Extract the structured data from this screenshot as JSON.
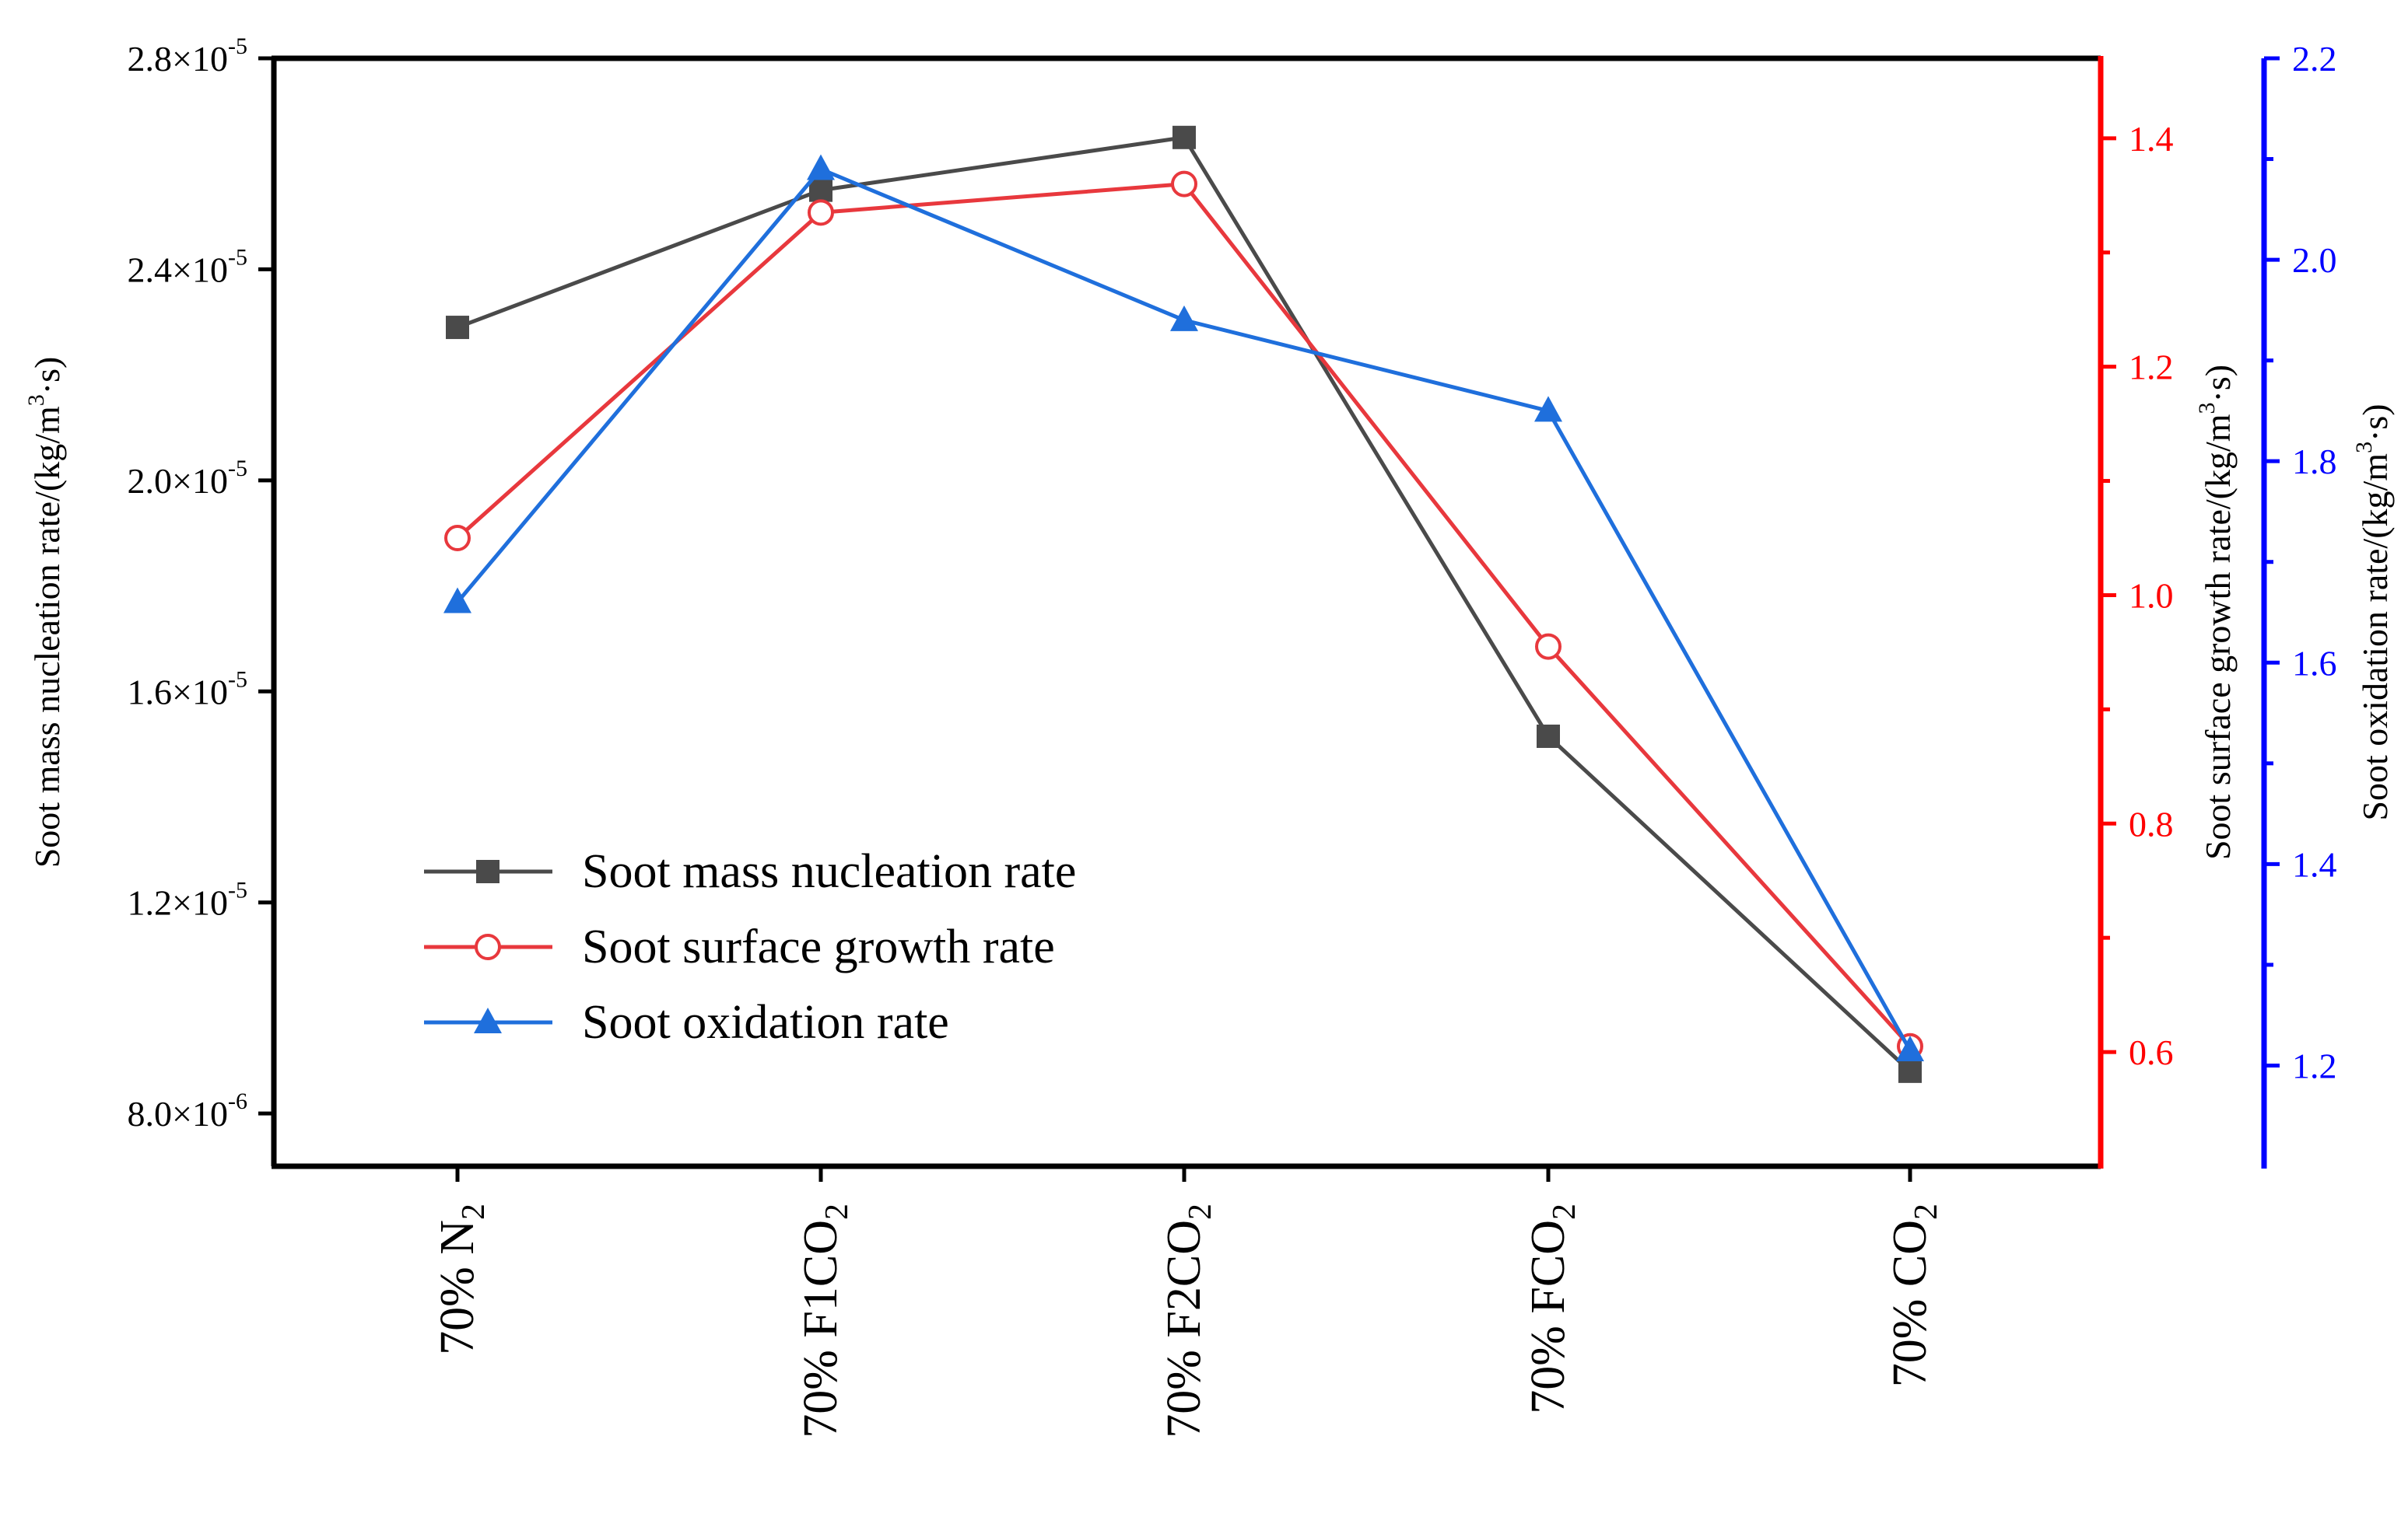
{
  "chart_data": {
    "type": "line",
    "categories": [
      {
        "base": "70% N",
        "sub": "2"
      },
      {
        "base": "70% F1CO",
        "sub": "2"
      },
      {
        "base": "70% F2CO",
        "sub": "2"
      },
      {
        "base": "70% FCO",
        "sub": "2"
      },
      {
        "base": "70% CO",
        "sub": "2"
      }
    ],
    "axes": {
      "left": {
        "label": "Soot mass nucleation rate/(kg/m",
        "label_sup": "3",
        "label_end": "·s)",
        "range": [
          7e-06,
          2.8e-05
        ],
        "ticks": [
          {
            "value": 8e-06,
            "mant": "8.0×10",
            "exp": "-6"
          },
          {
            "value": 1.2e-05,
            "mant": "1.2×10",
            "exp": "-5"
          },
          {
            "value": 1.6e-05,
            "mant": "1.6×10",
            "exp": "-5"
          },
          {
            "value": 2e-05,
            "mant": "2.0×10",
            "exp": "-5"
          },
          {
            "value": 2.4e-05,
            "mant": "2.4×10",
            "exp": "-5"
          },
          {
            "value": 2.8e-05,
            "mant": "2.8×10",
            "exp": "-5"
          }
        ],
        "color": "#000000"
      },
      "right_growth": {
        "label": "Soot surface growth rate/(kg/m",
        "label_sup": "3",
        "label_end": "·s)",
        "range": [
          0.5,
          1.47
        ],
        "ticks": [
          {
            "value": 0.6,
            "text": "0.6"
          },
          {
            "value": 0.8,
            "text": "0.8"
          },
          {
            "value": 1.0,
            "text": "1.0"
          },
          {
            "value": 1.2,
            "text": "1.2"
          },
          {
            "value": 1.4,
            "text": "1.4"
          }
        ],
        "minor": [
          0.7,
          0.9,
          1.1,
          1.3
        ],
        "color": "#ff0000"
      },
      "right_oxidation": {
        "label": "Soot oxidation rate/(kg/m",
        "label_sup": "3",
        "label_end": "·s)",
        "range": [
          1.1,
          2.2
        ],
        "ticks": [
          {
            "value": 1.2,
            "text": "1.2"
          },
          {
            "value": 1.4,
            "text": "1.4"
          },
          {
            "value": 1.6,
            "text": "1.6"
          },
          {
            "value": 1.8,
            "text": "1.8"
          },
          {
            "value": 2.0,
            "text": "2.0"
          },
          {
            "value": 2.2,
            "text": "2.2"
          }
        ],
        "minor": [
          1.3,
          1.5,
          1.7,
          1.9,
          2.1
        ],
        "color": "#0000ff"
      }
    },
    "series": [
      {
        "name": "Soot mass nucleation rate",
        "axis": "left",
        "marker": "square",
        "color": "#4a4a4a",
        "values": [
          2.29e-05,
          2.55e-05,
          2.65e-05,
          1.515e-05,
          8.8e-06
        ]
      },
      {
        "name": "Soot surface growth rate",
        "axis": "right_growth",
        "marker": "circle-open",
        "color": "#e8383d",
        "values": [
          1.05,
          1.335,
          1.36,
          0.955,
          0.605
        ]
      },
      {
        "name": "Soot oxidation rate",
        "axis": "right_oxidation",
        "marker": "triangle",
        "color": "#1f6fdc",
        "values": [
          1.66,
          2.09,
          1.94,
          1.85,
          1.215
        ]
      }
    ],
    "legend": "lower-left"
  }
}
